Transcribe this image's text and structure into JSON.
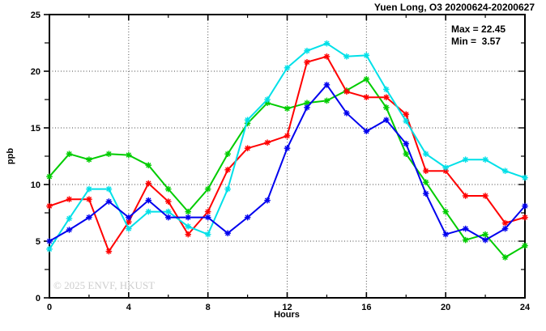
{
  "header": {
    "title": "Yuen Long, O3 20200624-20200627"
  },
  "stats": {
    "max_label": "Max = 22.45",
    "min_label": "Min =  3.57"
  },
  "watermark": "© 2025 ENVF, HKUST",
  "chart_data": {
    "type": "line",
    "title": "Yuen Long, O3 20200624-20200627",
    "xlabel": "Hours",
    "ylabel": "ppb",
    "xlim": [
      0,
      24
    ],
    "ylim": [
      0,
      25
    ],
    "grid": "dotted lines at major ticks",
    "legend": "none",
    "marker": "asterisk",
    "x_ticks": [
      0,
      4,
      8,
      12,
      16,
      20,
      24
    ],
    "x_minor_ticks": [
      2,
      6,
      10,
      14,
      18,
      22
    ],
    "y_ticks": [
      0,
      5,
      10,
      15,
      20,
      25
    ],
    "y_minor_ticks": [
      2.5,
      7.5,
      12.5,
      17.5,
      22.5
    ],
    "x": [
      0,
      1,
      2,
      3,
      4,
      5,
      6,
      7,
      8,
      9,
      10,
      11,
      12,
      13,
      14,
      15,
      16,
      17,
      18,
      19,
      20,
      21,
      22,
      23,
      24
    ],
    "series": [
      {
        "name": "green-series",
        "color": "#00cc00",
        "values": [
          10.7,
          12.7,
          12.2,
          12.7,
          12.6,
          11.7,
          9.6,
          7.6,
          9.6,
          12.7,
          15.4,
          17.2,
          16.7,
          17.2,
          17.4,
          18.3,
          19.3,
          16.8,
          12.7,
          10.2,
          7.6,
          5.1,
          5.6,
          3.57,
          4.6
        ]
      },
      {
        "name": "red-series",
        "color": "#ff0000",
        "values": [
          8.1,
          8.7,
          8.7,
          4.1,
          6.7,
          10.1,
          8.5,
          5.6,
          7.6,
          11.3,
          13.2,
          13.7,
          14.3,
          20.8,
          21.3,
          18.2,
          17.7,
          17.7,
          16.2,
          11.2,
          11.2,
          9.0,
          9.0,
          6.6,
          7.1
        ]
      },
      {
        "name": "cyan-series",
        "color": "#00e0e8",
        "values": [
          4.3,
          7.0,
          9.6,
          9.6,
          6.1,
          7.6,
          7.6,
          6.3,
          5.6,
          9.6,
          15.7,
          17.5,
          20.3,
          21.8,
          22.45,
          21.3,
          21.4,
          18.4,
          15.6,
          12.7,
          11.5,
          12.2,
          12.2,
          11.2,
          10.6
        ]
      },
      {
        "name": "blue-series",
        "color": "#0000ee",
        "values": [
          5.0,
          6.0,
          7.1,
          8.5,
          7.1,
          8.6,
          7.1,
          7.1,
          7.1,
          5.7,
          7.1,
          8.6,
          13.2,
          16.8,
          18.8,
          16.3,
          14.7,
          15.7,
          13.6,
          9.2,
          5.6,
          6.1,
          5.1,
          6.1,
          8.1
        ]
      }
    ]
  }
}
